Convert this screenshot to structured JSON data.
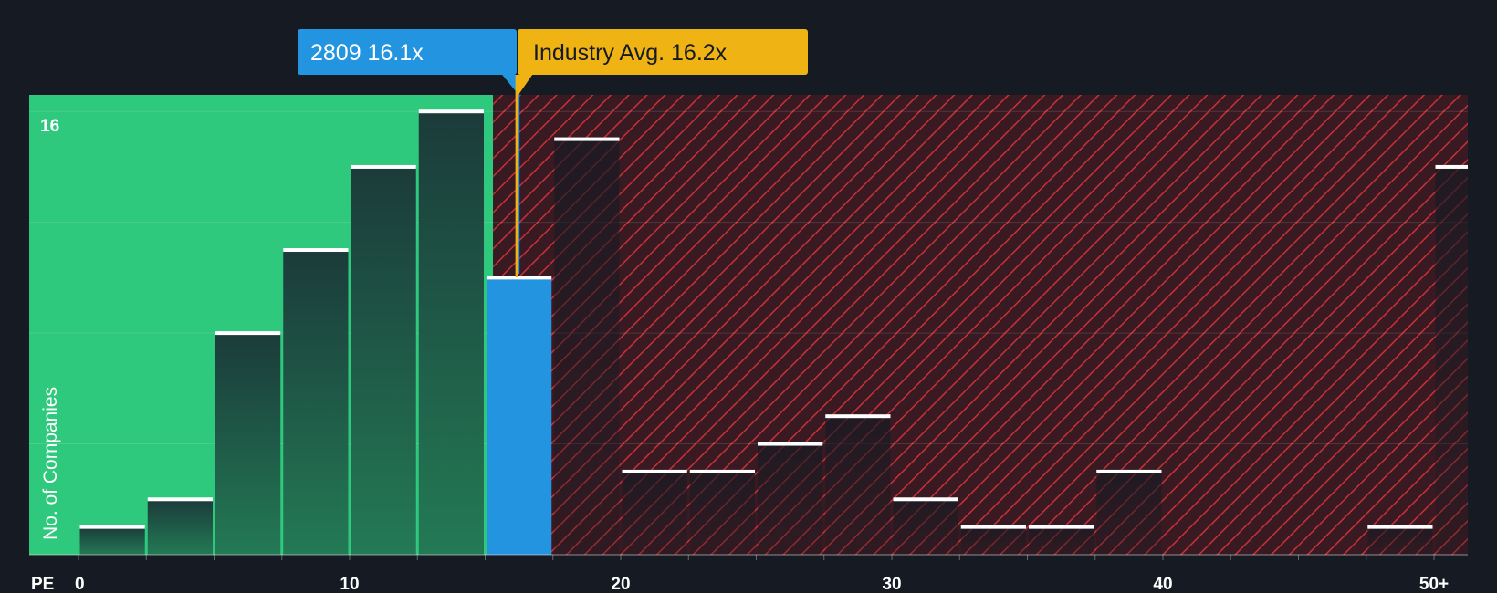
{
  "chart_data": {
    "type": "bar",
    "xlabel": "PE",
    "ylabel": "No. of Companies",
    "y_tick_label": "16",
    "ylim": [
      0,
      16.6
    ],
    "x_tick_labels": [
      {
        "value": 0,
        "label": "0"
      },
      {
        "value": 10,
        "label": "10"
      },
      {
        "value": 20,
        "label": "20"
      },
      {
        "value": 30,
        "label": "30"
      },
      {
        "value": 40,
        "label": "40"
      },
      {
        "value": 50,
        "label": "50+"
      }
    ],
    "bin_width": 2.5,
    "bins": [
      {
        "x0": 0,
        "value": 1
      },
      {
        "x0": 2.5,
        "value": 2
      },
      {
        "x0": 5,
        "value": 8
      },
      {
        "x0": 7.5,
        "value": 11
      },
      {
        "x0": 10,
        "value": 14
      },
      {
        "x0": 12.5,
        "value": 16
      },
      {
        "x0": 15,
        "value": 10,
        "highlight": true
      },
      {
        "x0": 17.5,
        "value": 15
      },
      {
        "x0": 20,
        "value": 3
      },
      {
        "x0": 22.5,
        "value": 3
      },
      {
        "x0": 25,
        "value": 4
      },
      {
        "x0": 27.5,
        "value": 5
      },
      {
        "x0": 30,
        "value": 2
      },
      {
        "x0": 32.5,
        "value": 1
      },
      {
        "x0": 35,
        "value": 1
      },
      {
        "x0": 37.5,
        "value": 3
      },
      {
        "x0": 47.5,
        "value": 1
      },
      {
        "x0": 50,
        "value": 14
      }
    ],
    "company": {
      "label": "2809 16.1x",
      "value": 16.1
    },
    "industry_avg": {
      "label": "Industry Avg. 16.2x",
      "value": 16.2
    },
    "colors": {
      "background": "#151a23",
      "undervalued_zone": "#2ec97c",
      "overvalued_zone": "#3a1a22",
      "hatch": "#e0353b",
      "bar_green_top": "#1b3b3a",
      "bar_green_bottom": "#237a55",
      "bar_dark": "#232734",
      "highlight_bar": "#2394e0",
      "company_callout": "#2394e0",
      "industry_callout": "#f0b314",
      "bar_cap": "#ffffff"
    }
  }
}
